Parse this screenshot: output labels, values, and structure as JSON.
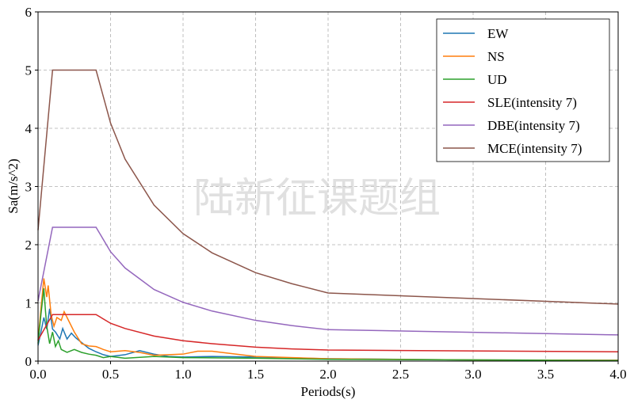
{
  "watermark": "陆新征课题组",
  "chart_data": {
    "type": "line",
    "title": "",
    "xlabel": "Periods(s)",
    "ylabel": "Sa(m/s^2)",
    "xlim": [
      0,
      4.0
    ],
    "ylim": [
      0,
      6
    ],
    "xticks": [
      "0.0",
      "0.5",
      "1.0",
      "1.5",
      "2.0",
      "2.5",
      "3.0",
      "3.5",
      "4.0"
    ],
    "yticks": [
      "0",
      "1",
      "2",
      "3",
      "4",
      "5",
      "6"
    ],
    "grid": true,
    "legend_position": "top-right",
    "series": [
      {
        "name": "EW",
        "color": "#1f77b4",
        "points": [
          [
            0,
            0.27
          ],
          [
            0.02,
            0.5
          ],
          [
            0.04,
            0.75
          ],
          [
            0.06,
            0.55
          ],
          [
            0.08,
            0.9
          ],
          [
            0.1,
            0.55
          ],
          [
            0.12,
            0.5
          ],
          [
            0.15,
            0.38
          ],
          [
            0.17,
            0.56
          ],
          [
            0.2,
            0.38
          ],
          [
            0.23,
            0.48
          ],
          [
            0.26,
            0.4
          ],
          [
            0.3,
            0.32
          ],
          [
            0.35,
            0.22
          ],
          [
            0.4,
            0.16
          ],
          [
            0.45,
            0.11
          ],
          [
            0.5,
            0.08
          ],
          [
            0.6,
            0.11
          ],
          [
            0.7,
            0.18
          ],
          [
            0.8,
            0.12
          ],
          [
            0.9,
            0.08
          ],
          [
            1.0,
            0.07
          ],
          [
            1.2,
            0.08
          ],
          [
            1.5,
            0.07
          ],
          [
            2.0,
            0.04
          ],
          [
            2.5,
            0.03
          ],
          [
            3.0,
            0.02
          ],
          [
            4.0,
            0.015
          ]
        ]
      },
      {
        "name": "NS",
        "color": "#ff7f0e",
        "points": [
          [
            0,
            0.35
          ],
          [
            0.02,
            0.9
          ],
          [
            0.04,
            1.42
          ],
          [
            0.06,
            1.1
          ],
          [
            0.07,
            1.3
          ],
          [
            0.09,
            0.8
          ],
          [
            0.11,
            0.6
          ],
          [
            0.13,
            0.75
          ],
          [
            0.16,
            0.7
          ],
          [
            0.18,
            0.85
          ],
          [
            0.2,
            0.75
          ],
          [
            0.25,
            0.5
          ],
          [
            0.3,
            0.3
          ],
          [
            0.35,
            0.26
          ],
          [
            0.4,
            0.25
          ],
          [
            0.45,
            0.2
          ],
          [
            0.5,
            0.16
          ],
          [
            0.6,
            0.18
          ],
          [
            0.7,
            0.15
          ],
          [
            0.8,
            0.1
          ],
          [
            1.0,
            0.12
          ],
          [
            1.1,
            0.17
          ],
          [
            1.2,
            0.17
          ],
          [
            1.3,
            0.14
          ],
          [
            1.5,
            0.08
          ],
          [
            2.0,
            0.04
          ],
          [
            3.0,
            0.02
          ],
          [
            4.0,
            0.015
          ]
        ]
      },
      {
        "name": "UD",
        "color": "#2ca02c",
        "points": [
          [
            0,
            0.3
          ],
          [
            0.02,
            0.8
          ],
          [
            0.04,
            1.25
          ],
          [
            0.05,
            0.9
          ],
          [
            0.06,
            0.6
          ],
          [
            0.08,
            0.3
          ],
          [
            0.1,
            0.5
          ],
          [
            0.12,
            0.25
          ],
          [
            0.14,
            0.35
          ],
          [
            0.16,
            0.2
          ],
          [
            0.2,
            0.15
          ],
          [
            0.25,
            0.2
          ],
          [
            0.3,
            0.15
          ],
          [
            0.35,
            0.12
          ],
          [
            0.4,
            0.1
          ],
          [
            0.45,
            0.06
          ],
          [
            0.5,
            0.08
          ],
          [
            0.6,
            0.05
          ],
          [
            0.8,
            0.08
          ],
          [
            1.0,
            0.06
          ],
          [
            1.5,
            0.05
          ],
          [
            2.0,
            0.03
          ],
          [
            3.0,
            0.02
          ],
          [
            4.0,
            0.01
          ]
        ]
      },
      {
        "name": "SLE(intensity 7)",
        "color": "#d62728",
        "points": [
          [
            0,
            0.36
          ],
          [
            0.1,
            0.8
          ],
          [
            0.4,
            0.8
          ],
          [
            0.5,
            0.65
          ],
          [
            0.6,
            0.56
          ],
          [
            0.8,
            0.43
          ],
          [
            1.0,
            0.35
          ],
          [
            1.2,
            0.3
          ],
          [
            1.5,
            0.24
          ],
          [
            1.75,
            0.21
          ],
          [
            2.0,
            0.19
          ],
          [
            4.0,
            0.16
          ]
        ]
      },
      {
        "name": "DBE(intensity 7)",
        "color": "#9467bd",
        "points": [
          [
            0,
            1.035
          ],
          [
            0.1,
            2.3
          ],
          [
            0.4,
            2.3
          ],
          [
            0.5,
            1.88
          ],
          [
            0.6,
            1.6
          ],
          [
            0.8,
            1.23
          ],
          [
            1.0,
            1.01
          ],
          [
            1.2,
            0.86
          ],
          [
            1.5,
            0.7
          ],
          [
            1.75,
            0.61
          ],
          [
            2.0,
            0.54
          ],
          [
            4.0,
            0.45
          ]
        ]
      },
      {
        "name": "MCE(intensity 7)",
        "color": "#8c564b",
        "points": [
          [
            0,
            2.25
          ],
          [
            0.1,
            5.0
          ],
          [
            0.4,
            5.0
          ],
          [
            0.5,
            4.09
          ],
          [
            0.6,
            3.47
          ],
          [
            0.8,
            2.68
          ],
          [
            1.0,
            2.19
          ],
          [
            1.2,
            1.86
          ],
          [
            1.5,
            1.52
          ],
          [
            1.75,
            1.33
          ],
          [
            2.0,
            1.17
          ],
          [
            4.0,
            0.98
          ]
        ]
      }
    ]
  }
}
